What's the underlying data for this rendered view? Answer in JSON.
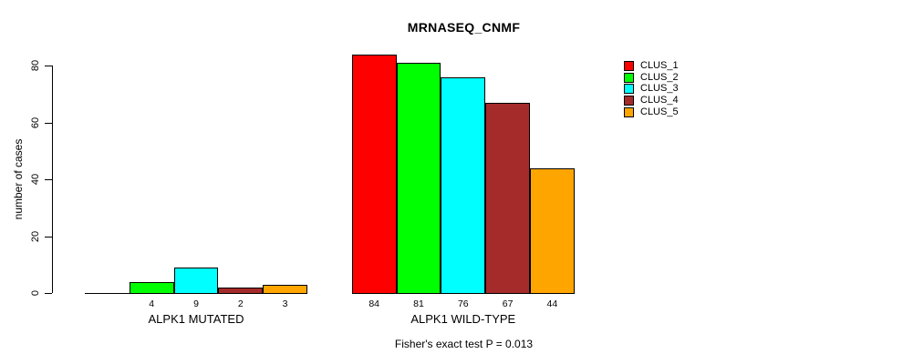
{
  "chart_data": {
    "type": "bar",
    "title": "MRNASEQ_CNMF",
    "xlabel": "",
    "ylabel": "number of cases",
    "categories": [
      "ALPK1 MUTATED",
      "ALPK1 WILD-TYPE"
    ],
    "series": [
      {
        "name": "CLUS_1",
        "color": "#ff0000",
        "values": [
          0,
          84
        ]
      },
      {
        "name": "CLUS_2",
        "color": "#00ff00",
        "values": [
          4,
          81
        ]
      },
      {
        "name": "CLUS_3",
        "color": "#00ffff",
        "values": [
          9,
          76
        ]
      },
      {
        "name": "CLUS_4",
        "color": "#a52a2a",
        "values": [
          2,
          67
        ]
      },
      {
        "name": "CLUS_5",
        "color": "#ffa500",
        "values": [
          3,
          44
        ]
      }
    ],
    "bar_value_labels": [
      [
        "",
        "4",
        "9",
        "2",
        "3"
      ],
      [
        "84",
        "81",
        "76",
        "67",
        "44"
      ]
    ],
    "yticks": [
      0,
      20,
      40,
      60,
      80
    ],
    "ylim": [
      0,
      88
    ],
    "grid": false,
    "legend_position": "top-right",
    "annotation": "Fisher's exact test P = 0.013"
  }
}
